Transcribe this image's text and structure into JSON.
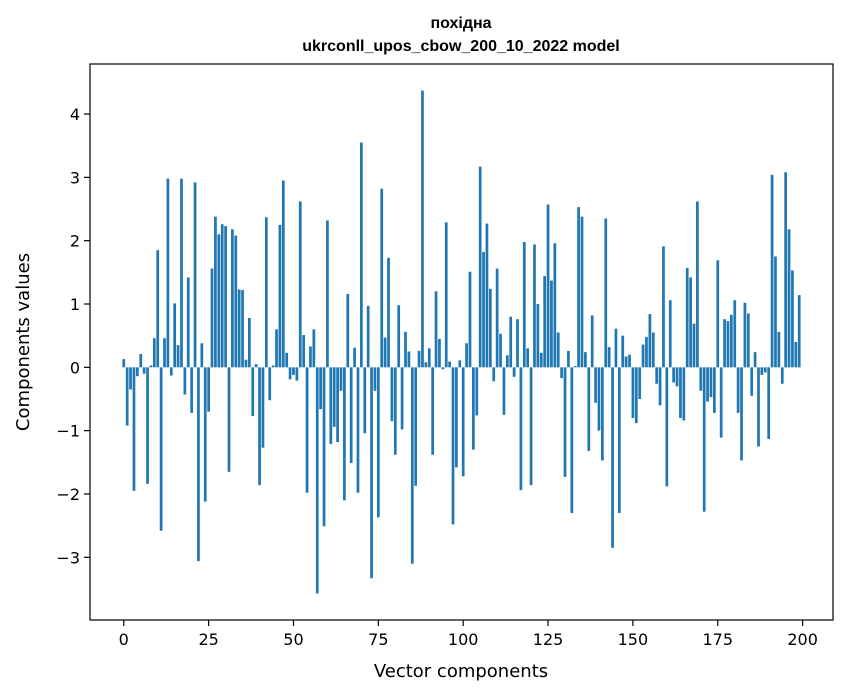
{
  "chart_data": {
    "type": "bar",
    "title_line1": "похідна",
    "title_line2": "ukrconll_upos_cbow_200_10_2022 model",
    "xlabel": "Vector components",
    "ylabel": "Components values",
    "xlim": [
      -9.95,
      208.95
    ],
    "ylim": [
      -3.99,
      4.79
    ],
    "xticks": [
      0,
      25,
      50,
      75,
      100,
      125,
      150,
      175,
      200
    ],
    "yticks": [
      -3,
      -2,
      -1,
      0,
      1,
      2,
      3,
      4
    ],
    "grid": false,
    "legend": "none",
    "bar_color": "#1f77b4",
    "x": [
      0,
      1,
      2,
      3,
      4,
      5,
      6,
      7,
      8,
      9,
      10,
      11,
      12,
      13,
      14,
      15,
      16,
      17,
      18,
      19,
      20,
      21,
      22,
      23,
      24,
      25,
      26,
      27,
      28,
      29,
      30,
      31,
      32,
      33,
      34,
      35,
      36,
      37,
      38,
      39,
      40,
      41,
      42,
      43,
      44,
      45,
      46,
      47,
      48,
      49,
      50,
      51,
      52,
      53,
      54,
      55,
      56,
      57,
      58,
      59,
      60,
      61,
      62,
      63,
      64,
      65,
      66,
      67,
      68,
      69,
      70,
      71,
      72,
      73,
      74,
      75,
      76,
      77,
      78,
      79,
      80,
      81,
      82,
      83,
      84,
      85,
      86,
      87,
      88,
      89,
      90,
      91,
      92,
      93,
      94,
      95,
      96,
      97,
      98,
      99,
      100,
      101,
      102,
      103,
      104,
      105,
      106,
      107,
      108,
      109,
      110,
      111,
      112,
      113,
      114,
      115,
      116,
      117,
      118,
      119,
      120,
      121,
      122,
      123,
      124,
      125,
      126,
      127,
      128,
      129,
      130,
      131,
      132,
      133,
      134,
      135,
      136,
      137,
      138,
      139,
      140,
      141,
      142,
      143,
      144,
      145,
      146,
      147,
      148,
      149,
      150,
      151,
      152,
      153,
      154,
      155,
      156,
      157,
      158,
      159,
      160,
      161,
      162,
      163,
      164,
      165,
      166,
      167,
      168,
      169,
      170,
      171,
      172,
      173,
      174,
      175,
      176,
      177,
      178,
      179,
      180,
      181,
      182,
      183,
      184,
      185,
      186,
      187,
      188,
      189,
      190,
      191,
      192,
      193,
      194,
      195,
      196,
      197,
      198,
      199
    ],
    "values": [
      0.13,
      -0.92,
      -0.35,
      -1.95,
      -0.14,
      0.21,
      -0.1,
      -1.84,
      0.03,
      0.46,
      1.85,
      -2.58,
      0.46,
      2.98,
      -0.13,
      1.01,
      0.35,
      2.98,
      -0.43,
      1.42,
      -0.72,
      2.92,
      -3.06,
      0.38,
      -2.12,
      -0.7,
      1.56,
      2.38,
      2.1,
      2.26,
      2.23,
      -1.65,
      2.18,
      2.08,
      1.23,
      1.22,
      0.12,
      0.78,
      -0.77,
      0.05,
      -1.86,
      -1.27,
      2.37,
      -0.52,
      0.03,
      0.6,
      2.25,
      2.95,
      0.23,
      -0.19,
      -0.12,
      -0.21,
      2.62,
      0.51,
      -1.98,
      0.33,
      0.6,
      -3.57,
      -0.66,
      -2.51,
      2.32,
      -1.21,
      -0.94,
      -1.18,
      -0.37,
      -2.1,
      1.16,
      -1.51,
      0.31,
      -1.98,
      3.55,
      -1.04,
      0.97,
      -3.33,
      -0.37,
      -2.37,
      2.82,
      0.47,
      1.73,
      -0.85,
      -1.38,
      0.98,
      -0.98,
      0.56,
      0.25,
      -3.1,
      -1.87,
      0.26,
      4.37,
      0.08,
      0.3,
      -1.38,
      1.2,
      0.45,
      -0.03,
      2.29,
      0.09,
      -2.48,
      -1.58,
      0.11,
      -1.72,
      0.38,
      1.51,
      -1.3,
      -0.76,
      3.17,
      1.82,
      2.27,
      1.24,
      -0.22,
      1.56,
      0.53,
      -0.75,
      0.19,
      0.8,
      -0.15,
      0.76,
      -1.94,
      1.98,
      0.3,
      -1.86,
      1.94,
      1.0,
      0.23,
      1.44,
      2.57,
      1.37,
      1.96,
      0.55,
      -0.17,
      -1.73,
      0.26,
      -2.3,
      0.02,
      2.53,
      2.38,
      0.24,
      -1.32,
      0.82,
      -0.56,
      -1.0,
      -1.47,
      2.35,
      0.32,
      -2.85,
      0.61,
      -2.3,
      0.5,
      0.17,
      0.2,
      -0.8,
      -0.88,
      -0.5,
      0.36,
      0.48,
      0.84,
      0.55,
      -0.26,
      -0.6,
      1.91,
      -1.88,
      1.06,
      -0.24,
      -0.3,
      -0.8,
      -0.84,
      1.57,
      1.42,
      0.69,
      2.62,
      -0.37,
      -2.28,
      -0.54,
      -0.47,
      -0.72,
      1.69,
      -1.11,
      0.76,
      0.73,
      0.83,
      1.06,
      -0.72,
      -1.47,
      1.02,
      0.85,
      -0.45,
      0.24,
      -1.25,
      -0.12,
      -0.08,
      -1.13,
      3.04,
      1.75,
      0.56,
      -0.26,
      3.08,
      2.18,
      1.53,
      0.4,
      1.14
    ]
  }
}
